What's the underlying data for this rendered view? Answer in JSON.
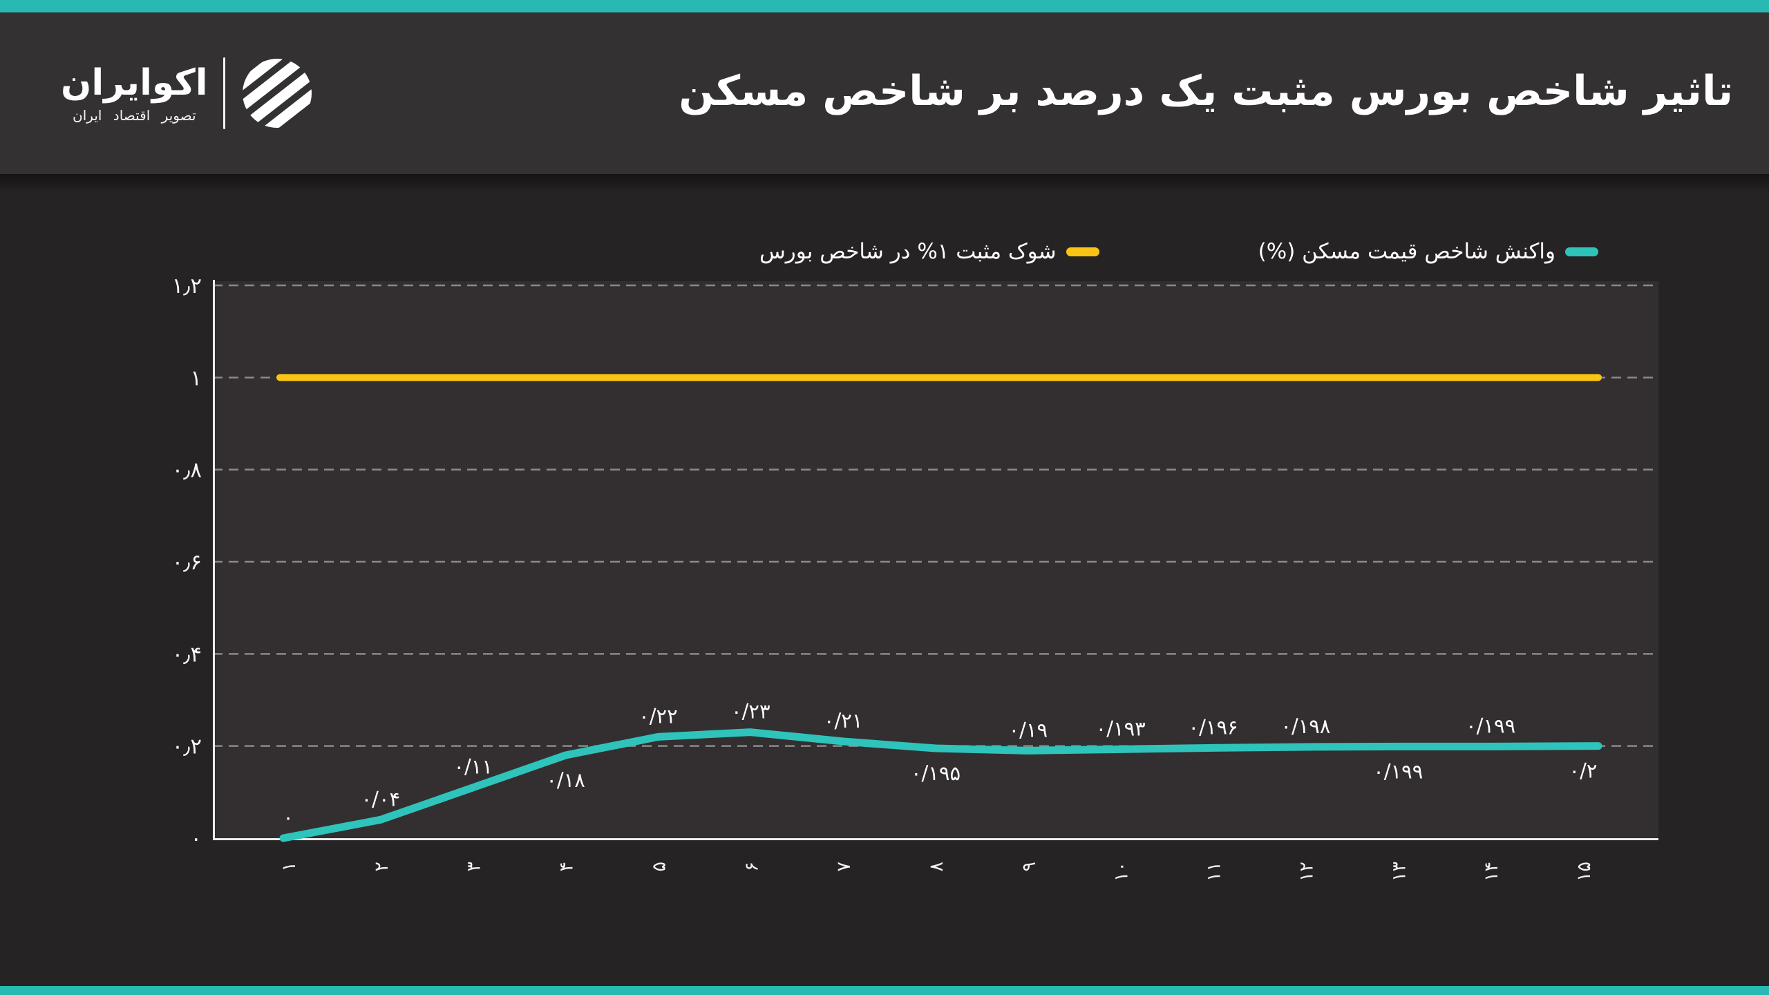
{
  "colors": {
    "accent_teal": "#28bab2",
    "line_teal": "#2ec4bb",
    "line_yellow": "#f9c414",
    "header_bg": "#343132",
    "page_bg": "#262324",
    "plot_bg": "#332f30",
    "grid": "#a7a7a7",
    "axis": "#ececec",
    "text": "#ffffff"
  },
  "header": {
    "title": "تاثیر شاخص بورس مثبت یک درصد بر شاخص مسکن",
    "logo": {
      "name": "اکوایران",
      "tagline": "تصویر اقتصاد ایران"
    }
  },
  "legend": {
    "items": [
      {
        "label": "شوک مثبت ۱% در شاخص بورس",
        "color": "#f9c414"
      },
      {
        "label": "واکنش شاخص قیمت مسکن (%)",
        "color": "#2ec4bb"
      }
    ]
  },
  "chart_data": {
    "type": "line",
    "x_values": [
      1,
      2,
      3,
      4,
      5,
      6,
      7,
      8,
      9,
      10,
      11,
      12,
      13,
      14,
      15
    ],
    "x_tick_labels": [
      "۱",
      "۲",
      "۳",
      "۴",
      "۵",
      "۶",
      "۷",
      "۸",
      "۹",
      "۱۰",
      "۱۱",
      "۱۲",
      "۱۳",
      "۱۴",
      "۱۵"
    ],
    "x_tick_rotation_deg": -90,
    "y_tick_values": [
      0,
      0.2,
      0.4,
      0.6,
      0.8,
      1,
      1.2
    ],
    "y_tick_labels": [
      "۰",
      "۰٫۲",
      "۰٫۴",
      "۰٫۶",
      "۰٫۸",
      "۱",
      "۱٫۲"
    ],
    "ylim": [
      0,
      1.2
    ],
    "grid": "dashed-horizontal",
    "legend_position": "top",
    "series": [
      {
        "name": "شوک مثبت ۱% در شاخص بورس",
        "color": "#f9c414",
        "values": [
          1,
          1,
          1,
          1,
          1,
          1,
          1,
          1,
          1,
          1,
          1,
          1,
          1,
          1,
          1
        ]
      },
      {
        "name": "واکنش شاخص قیمت مسکن (%)",
        "color": "#2ec4bb",
        "values": [
          0,
          0.04,
          0.11,
          0.18,
          0.22,
          0.23,
          0.21,
          0.195,
          0.19,
          0.193,
          0.196,
          0.198,
          0.199,
          0.199,
          0.2
        ],
        "point_labels": [
          "۰",
          "۰/۰۴",
          "۰/۱۱",
          "۰/۱۸",
          "۰/۲۲",
          "۰/۲۳",
          "۰/۲۱",
          "۰/۱۹۵",
          "۰/۱۹",
          "۰/۱۹۳",
          "۰/۱۹۶",
          "۰/۱۹۸",
          "۰/۱۹۹",
          "۰/۱۹۹",
          "۰/۲"
        ],
        "label_placement": [
          "above",
          "above",
          "above",
          "below",
          "above",
          "above",
          "above",
          "below",
          "above",
          "above",
          "above",
          "above",
          "below",
          "above",
          "below"
        ]
      }
    ]
  }
}
